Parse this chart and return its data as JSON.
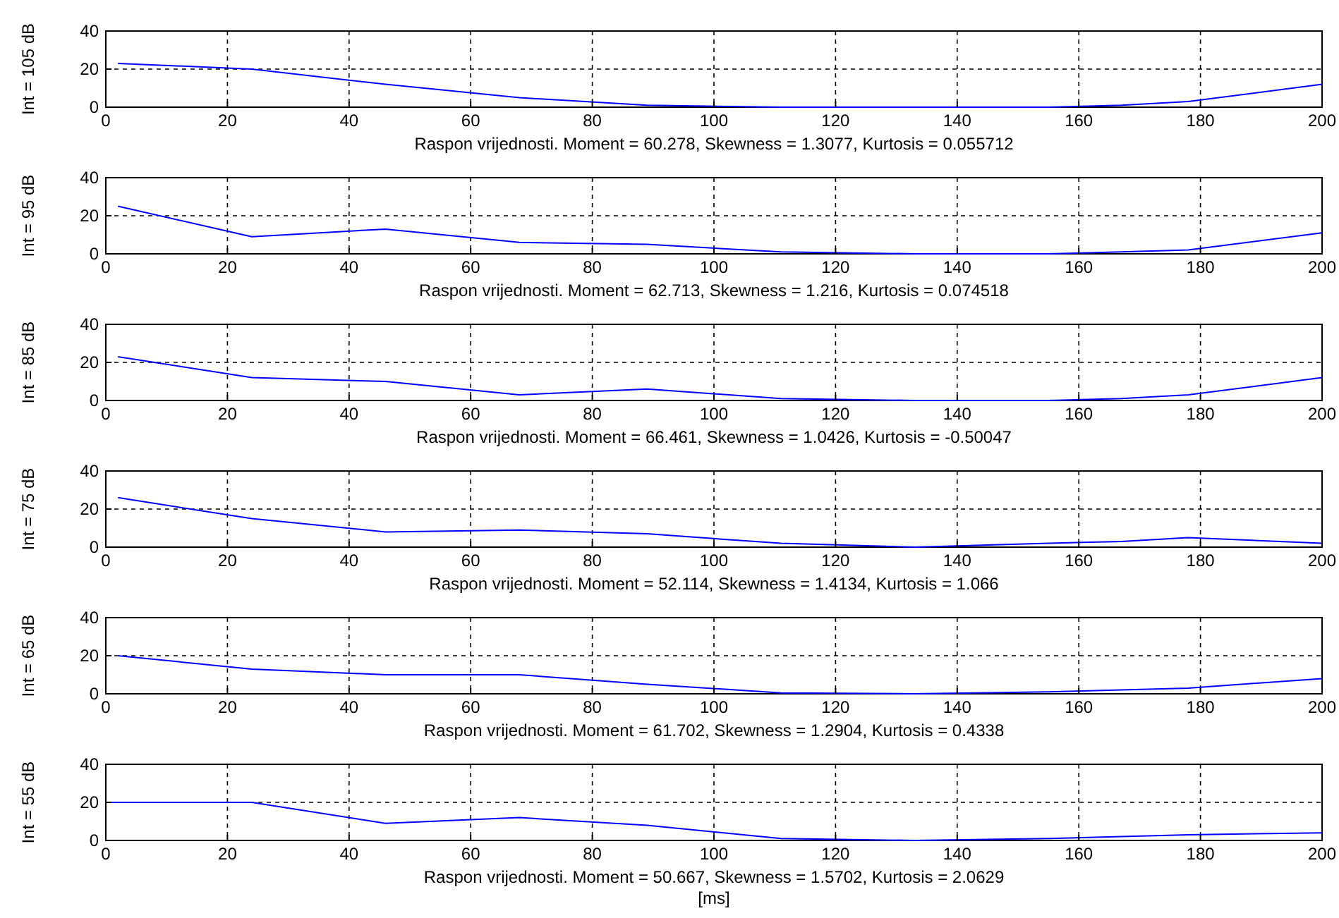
{
  "chart_data": [
    {
      "type": "line",
      "ylabel": "Int = 105 dB",
      "xlabel": "Raspon vrijednosti. Moment = 60.278, Skewness = 1.3077, Kurtosis = 0.055712",
      "xlim": [
        0,
        200
      ],
      "ylim": [
        0,
        40
      ],
      "xticks": [
        0,
        20,
        40,
        60,
        80,
        100,
        120,
        140,
        160,
        180,
        200
      ],
      "yticks": [
        0,
        20,
        40
      ],
      "grid": true,
      "x": [
        2,
        24,
        46,
        68,
        89,
        111,
        133,
        155,
        167,
        178,
        200
      ],
      "series": [
        {
          "color": "#0000ff",
          "values": [
            23,
            20,
            12,
            5,
            1,
            0,
            0,
            0,
            1,
            3,
            12
          ]
        }
      ]
    },
    {
      "type": "line",
      "ylabel": "Int = 95 dB",
      "xlabel": "Raspon vrijednosti. Moment = 62.713, Skewness = 1.216, Kurtosis = 0.074518",
      "xlim": [
        0,
        200
      ],
      "ylim": [
        0,
        40
      ],
      "xticks": [
        0,
        20,
        40,
        60,
        80,
        100,
        120,
        140,
        160,
        180,
        200
      ],
      "yticks": [
        0,
        20,
        40
      ],
      "grid": true,
      "x": [
        2,
        24,
        46,
        68,
        89,
        111,
        133,
        155,
        167,
        178,
        200
      ],
      "series": [
        {
          "color": "#0000ff",
          "values": [
            25,
            9,
            13,
            6,
            5,
            1,
            0,
            0,
            1,
            2,
            11
          ]
        }
      ]
    },
    {
      "type": "line",
      "ylabel": "Int = 85 dB",
      "xlabel": "Raspon vrijednosti. Moment = 66.461, Skewness = 1.0426, Kurtosis = -0.50047",
      "xlim": [
        0,
        200
      ],
      "ylim": [
        0,
        40
      ],
      "xticks": [
        0,
        20,
        40,
        60,
        80,
        100,
        120,
        140,
        160,
        180,
        200
      ],
      "yticks": [
        0,
        20,
        40
      ],
      "grid": true,
      "x": [
        2,
        24,
        46,
        68,
        89,
        111,
        133,
        155,
        167,
        178,
        200
      ],
      "series": [
        {
          "color": "#0000ff",
          "values": [
            23,
            12,
            10,
            3,
            6,
            1,
            0,
            0,
            1,
            3,
            12
          ]
        }
      ]
    },
    {
      "type": "line",
      "ylabel": "Int = 75 dB",
      "xlabel": "Raspon vrijednosti. Moment = 52.114, Skewness = 1.4134, Kurtosis = 1.066",
      "xlim": [
        0,
        200
      ],
      "ylim": [
        0,
        40
      ],
      "xticks": [
        0,
        20,
        40,
        60,
        80,
        100,
        120,
        140,
        160,
        180,
        200
      ],
      "yticks": [
        0,
        20,
        40
      ],
      "grid": true,
      "x": [
        2,
        24,
        46,
        68,
        89,
        111,
        133,
        155,
        167,
        178,
        200
      ],
      "series": [
        {
          "color": "#0000ff",
          "values": [
            26,
            15,
            8,
            9,
            7,
            2,
            0,
            2,
            3,
            5,
            2
          ]
        }
      ]
    },
    {
      "type": "line",
      "ylabel": "Int = 65 dB",
      "xlabel": "Raspon vrijednosti. Moment = 61.702, Skewness = 1.2904, Kurtosis = 0.4338",
      "xlim": [
        0,
        200
      ],
      "ylim": [
        0,
        40
      ],
      "xticks": [
        0,
        20,
        40,
        60,
        80,
        100,
        120,
        140,
        160,
        180,
        200
      ],
      "yticks": [
        0,
        20,
        40
      ],
      "grid": true,
      "x": [
        2,
        24,
        46,
        68,
        89,
        111,
        133,
        155,
        167,
        178,
        200
      ],
      "series": [
        {
          "color": "#0000ff",
          "values": [
            20,
            13,
            10,
            10,
            5,
            0.5,
            0,
            1,
            2,
            3,
            8
          ]
        }
      ]
    },
    {
      "type": "line",
      "ylabel": "Int = 55 dB",
      "xlabel": "Raspon vrijednosti. Moment = 50.667, Skewness = 1.5702, Kurtosis = 2.0629",
      "annotations": [
        "[ms]"
      ],
      "xlim": [
        0,
        200
      ],
      "ylim": [
        0,
        40
      ],
      "xticks": [
        0,
        20,
        40,
        60,
        80,
        100,
        120,
        140,
        160,
        180,
        200
      ],
      "yticks": [
        0,
        20,
        40
      ],
      "grid": true,
      "x": [
        0,
        24,
        46,
        68,
        89,
        111,
        133,
        155,
        167,
        178,
        200
      ],
      "series": [
        {
          "color": "#0000ff",
          "values": [
            20,
            20,
            9,
            12,
            8,
            1,
            0,
            1,
            2,
            3,
            4
          ]
        }
      ]
    }
  ]
}
